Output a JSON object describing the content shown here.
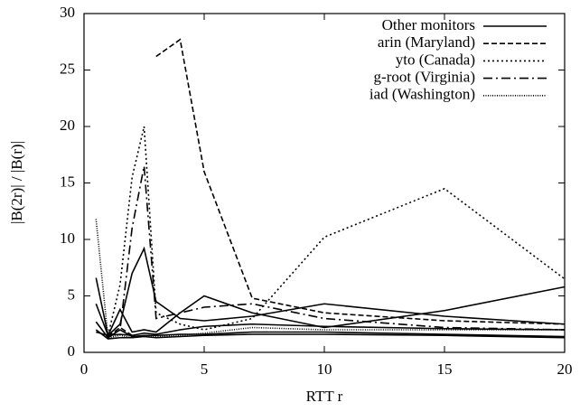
{
  "chart_data": {
    "type": "line",
    "xlabel": "RTT r",
    "ylabel": "|B(2r)| / |B(r)|",
    "x": [
      0.5,
      1,
      1.5,
      2,
      2.5,
      3,
      4,
      5,
      7,
      10,
      15,
      20
    ],
    "xlim": [
      0,
      20
    ],
    "xticks": [
      0,
      5,
      10,
      15,
      20
    ],
    "ylim": [
      0,
      30
    ],
    "yticks": [
      0,
      5,
      10,
      15,
      20,
      25,
      30
    ],
    "legend": "top-right",
    "series": [
      {
        "name": "Other monitors",
        "color": "#000000",
        "dash": "solid",
        "values": [
          6.6,
          1.5,
          2.5,
          7,
          9.2,
          4.5,
          3,
          2.8,
          3.2,
          4.3,
          3.2,
          2.5
        ]
      },
      {
        "color": "#000000",
        "dash": "solid",
        "values": [
          4.3,
          1.5,
          3.8,
          1.8,
          2,
          1.8,
          3.5,
          5,
          3.5,
          2.2,
          3.7,
          5.8
        ]
      },
      {
        "color": "#000000",
        "dash": "solid",
        "values": [
          2.7,
          1.3,
          2,
          1.4,
          1.5,
          1.5,
          1.6,
          1.6,
          1.8,
          1.8,
          1.6,
          1.4
        ]
      },
      {
        "color": "#000000",
        "dash": "solid",
        "values": [
          1.8,
          1.5,
          1.6,
          1.5,
          1.7,
          1.6,
          2,
          2.3,
          2.5,
          2.3,
          2.1,
          2
        ]
      },
      {
        "color": "#000000",
        "dash": "solid",
        "values": [
          2,
          1.2,
          1.3,
          1.3,
          1.4,
          1.3,
          1.4,
          1.5,
          1.6,
          1.6,
          1.5,
          1.3
        ]
      },
      {
        "name": "arin (Maryland)",
        "color": "#000000",
        "dash": "dashed",
        "values": [
          null,
          1.4,
          2.2,
          1.5,
          null,
          26.2,
          27.7,
          16,
          4.8,
          3.5,
          2.8,
          2.5
        ]
      },
      {
        "name": "yto (Canada)",
        "color": "#000000",
        "dash": "dotted",
        "values": [
          null,
          1.5,
          6,
          15.5,
          20,
          3.5,
          2.5,
          2,
          3,
          10.2,
          14.5,
          6.5
        ]
      },
      {
        "name": "g-root (Virginia)",
        "color": "#000000",
        "dash": "dash-dot",
        "values": [
          null,
          1.3,
          2,
          11,
          16.5,
          3,
          3.5,
          4,
          4.3,
          3,
          2.2,
          2
        ]
      },
      {
        "name": "iad (Washington)",
        "color": "#000000",
        "dash": "fine-dotted",
        "values": [
          11.8,
          1.3,
          1.5,
          1.3,
          1.5,
          1.4,
          1.5,
          1.7,
          2.2,
          2,
          2,
          2
        ]
      }
    ]
  }
}
